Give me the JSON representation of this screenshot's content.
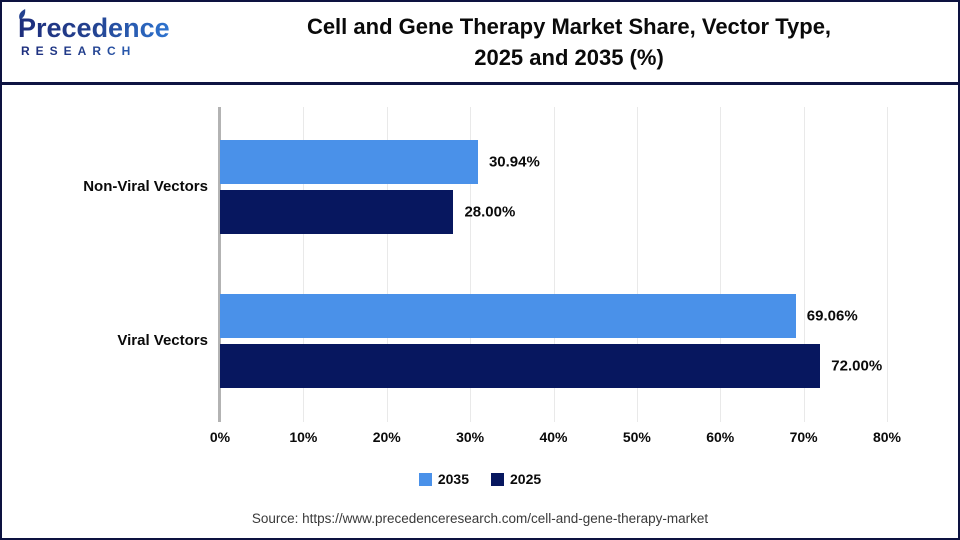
{
  "header": {
    "logo": {
      "line1": "Precedence",
      "line2": "RESEARCH"
    },
    "title_line1": "Cell and Gene Therapy Market Share, Vector Type,",
    "title_line2": "2025 and 2035 (%)"
  },
  "chart_data": {
    "type": "bar",
    "orientation": "horizontal",
    "title": "Cell and Gene Therapy Market Share, Vector Type, 2025 and 2035 (%)",
    "categories": [
      "Non-Viral Vectors",
      "Viral Vectors"
    ],
    "series": [
      {
        "name": "2035",
        "color": "#4A91E9",
        "values": [
          30.94,
          69.06
        ],
        "labels": [
          "30.94%",
          "69.06%"
        ]
      },
      {
        "name": "2025",
        "color": "#07175F",
        "values": [
          28.0,
          72.0
        ],
        "labels": [
          "28.00%",
          "72.00%"
        ]
      }
    ],
    "xlim": [
      0,
      80
    ],
    "x_tick_labels": [
      "0%",
      "10%",
      "20%",
      "30%",
      "40%",
      "50%",
      "60%",
      "70%",
      "80%"
    ],
    "grid": true,
    "legend": [
      "2035",
      "2025"
    ],
    "legend_position": "bottom"
  },
  "footer": {
    "source": "Source: https://www.precedenceresearch.com/cell-and-gene-therapy-market"
  }
}
